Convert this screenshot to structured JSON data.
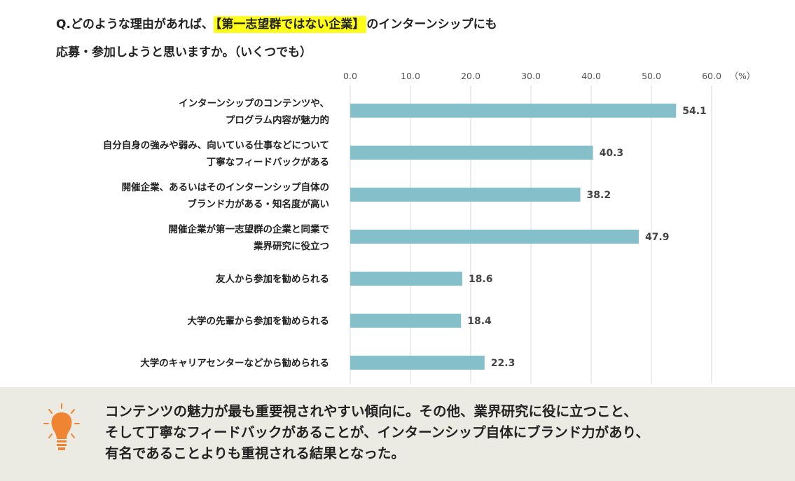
{
  "question": {
    "prefix": "Q.どのような理由があれば、",
    "highlight": "【第一志望群ではない企業】",
    "suffix": "のインターンシップにも",
    "line2": "応募・参加しようと思いますか。（いくつでも）"
  },
  "chart_data": {
    "type": "bar",
    "orientation": "horizontal",
    "categories": [
      [
        "インターンシップのコンテンツや、",
        "プログラム内容が魅力的"
      ],
      [
        "自分自身の強みや弱み、向いている仕事などについて",
        "丁寧なフィードバックがある"
      ],
      [
        "開催企業、あるいはそのインターンシップ自体の",
        "ブランド力がある・知名度が高い"
      ],
      [
        "開催企業が第一志望群の企業と同業で",
        "業界研究に役立つ"
      ],
      [
        "友人から参加を勧められる"
      ],
      [
        "大学の先輩から参加を勧められる"
      ],
      [
        "大学のキャリアセンターなどから勧められる"
      ]
    ],
    "values": [
      54.1,
      40.3,
      38.2,
      47.9,
      18.6,
      18.4,
      22.3
    ],
    "value_labels": [
      "54.1",
      "40.3",
      "38.2",
      "47.9",
      "18.6",
      "18.4",
      "22.3"
    ],
    "xlim": [
      0,
      60
    ],
    "ticks": [
      "0.0",
      "10.0",
      "20.0",
      "30.0",
      "40.0",
      "50.0",
      "60.0"
    ],
    "unit": "（%）",
    "grid": true,
    "bar_color": "#84bfca"
  },
  "footer": {
    "lines": [
      "コンテンツの魅力が最も重要視されやすい傾向に。その他、業界研究に役に立つこと、",
      "そして丁寧なフィードバックがあることが、インターンシップ自体にブランド力があり、",
      "有名であることよりも重視される結果となった。"
    ],
    "icon": "lightbulb-icon",
    "icon_color": "#ef8532"
  }
}
